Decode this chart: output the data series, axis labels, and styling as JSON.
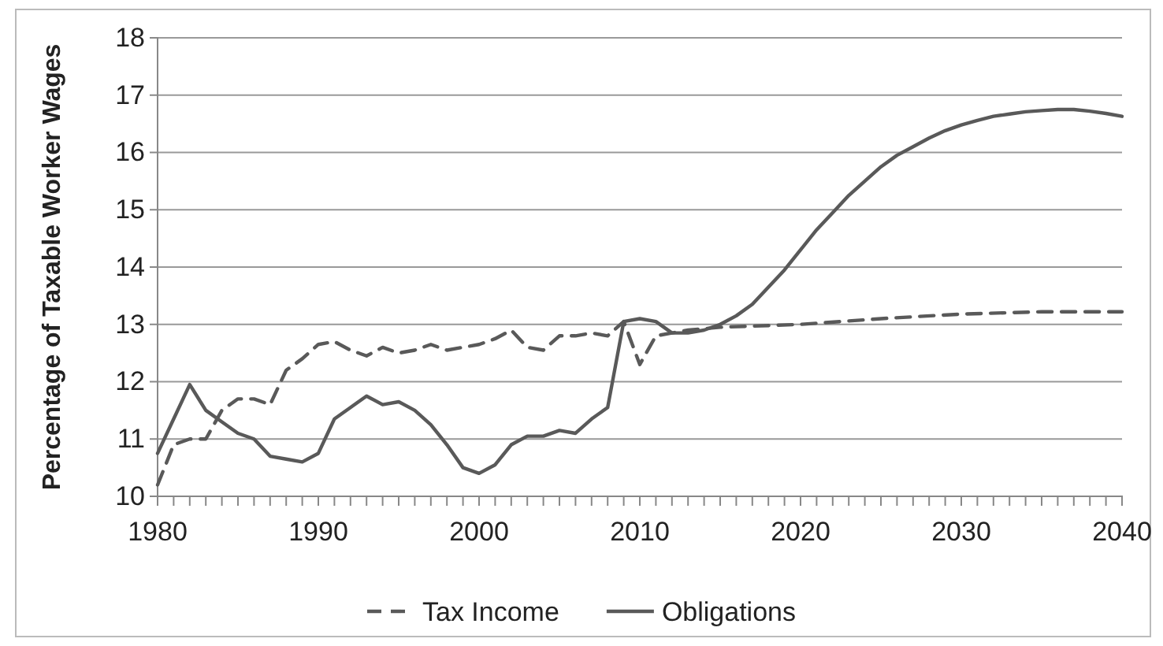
{
  "chart_data": {
    "type": "line",
    "ylabel": "Percentage of Taxable Worker Wages",
    "ylim": [
      10,
      18
    ],
    "yticks": [
      10,
      11,
      12,
      13,
      14,
      15,
      16,
      17,
      18
    ],
    "xlim": [
      1980,
      2040
    ],
    "xticks": [
      1980,
      {
        "value": 1981,
        "label": null
      },
      {
        "value": 1982,
        "label": null
      },
      {
        "value": 1983,
        "label": null
      },
      {
        "value": 1984,
        "label": null
      },
      {
        "value": 1985,
        "label": null
      },
      {
        "value": 1986,
        "label": null
      },
      {
        "value": 1987,
        "label": null
      },
      {
        "value": 1988,
        "label": null
      },
      {
        "value": 1989,
        "label": null
      },
      1990,
      {
        "value": 1991,
        "label": null
      },
      {
        "value": 1992,
        "label": null
      },
      {
        "value": 1993,
        "label": null
      },
      {
        "value": 1994,
        "label": null
      },
      {
        "value": 1995,
        "label": null
      },
      {
        "value": 1996,
        "label": null
      },
      {
        "value": 1997,
        "label": null
      },
      {
        "value": 1998,
        "label": null
      },
      {
        "value": 1999,
        "label": null
      },
      2000,
      {
        "value": 2001,
        "label": null
      },
      {
        "value": 2002,
        "label": null
      },
      {
        "value": 2003,
        "label": null
      },
      {
        "value": 2004,
        "label": null
      },
      {
        "value": 2005,
        "label": null
      },
      {
        "value": 2006,
        "label": null
      },
      {
        "value": 2007,
        "label": null
      },
      {
        "value": 2008,
        "label": null
      },
      {
        "value": 2009,
        "label": null
      },
      2010,
      {
        "value": 2011,
        "label": null
      },
      {
        "value": 2012,
        "label": null
      },
      {
        "value": 2013,
        "label": null
      },
      {
        "value": 2014,
        "label": null
      },
      {
        "value": 2015,
        "label": null
      },
      {
        "value": 2016,
        "label": null
      },
      {
        "value": 2017,
        "label": null
      },
      {
        "value": 2018,
        "label": null
      },
      {
        "value": 2019,
        "label": null
      },
      2020,
      {
        "value": 2021,
        "label": null
      },
      {
        "value": 2022,
        "label": null
      },
      {
        "value": 2023,
        "label": null
      },
      {
        "value": 2024,
        "label": null
      },
      {
        "value": 2025,
        "label": null
      },
      {
        "value": 2026,
        "label": null
      },
      {
        "value": 2027,
        "label": null
      },
      {
        "value": 2028,
        "label": null
      },
      {
        "value": 2029,
        "label": null
      },
      2030,
      {
        "value": 2031,
        "label": null
      },
      {
        "value": 2032,
        "label": null
      },
      {
        "value": 2033,
        "label": null
      },
      {
        "value": 2034,
        "label": null
      },
      {
        "value": 2035,
        "label": null
      },
      {
        "value": 2036,
        "label": null
      },
      {
        "value": 2037,
        "label": null
      },
      {
        "value": 2038,
        "label": null
      },
      {
        "value": 2039,
        "label": null
      },
      2040
    ],
    "grid": "y",
    "legend": "bottom",
    "series": [
      {
        "name": "Tax Income",
        "color": "#595959",
        "line_style": "dashed",
        "x": [
          1980,
          1981,
          1982,
          1983,
          1984,
          1985,
          1986,
          1987,
          1988,
          1989,
          1990,
          1991,
          1992,
          1993,
          1994,
          1995,
          1996,
          1997,
          1998,
          1999,
          2000,
          2001,
          2002,
          2003,
          2004,
          2005,
          2006,
          2007,
          2008,
          2009,
          2010,
          2011,
          2012,
          2013,
          2015,
          2020,
          2025,
          2030,
          2035,
          2040
        ],
        "values": [
          10.2,
          10.9,
          11.0,
          11.0,
          11.5,
          11.7,
          11.7,
          11.6,
          12.2,
          12.4,
          12.65,
          12.7,
          12.55,
          12.45,
          12.6,
          12.5,
          12.55,
          12.65,
          12.55,
          12.6,
          12.65,
          12.75,
          12.9,
          12.6,
          12.55,
          12.8,
          12.8,
          12.85,
          12.8,
          13.05,
          12.3,
          12.8,
          12.85,
          12.9,
          12.95,
          13.0,
          13.1,
          13.18,
          13.22,
          13.22
        ]
      },
      {
        "name": "Obligations",
        "color": "#595959",
        "line_style": "solid",
        "x": [
          1980,
          1981,
          1982,
          1983,
          1984,
          1985,
          1986,
          1987,
          1988,
          1989,
          1990,
          1991,
          1992,
          1993,
          1994,
          1995,
          1996,
          1997,
          1998,
          1999,
          2000,
          2001,
          2002,
          2003,
          2004,
          2005,
          2006,
          2007,
          2008,
          2009,
          2010,
          2011,
          2012,
          2013,
          2014,
          2015,
          2016,
          2017,
          2018,
          2019,
          2020,
          2021,
          2022,
          2023,
          2024,
          2025,
          2026,
          2027,
          2028,
          2029,
          2030,
          2031,
          2032,
          2033,
          2034,
          2035,
          2036,
          2037,
          2038,
          2039,
          2040
        ],
        "values": [
          10.75,
          11.35,
          11.95,
          11.5,
          11.3,
          11.1,
          11.0,
          10.7,
          10.65,
          10.6,
          10.75,
          11.35,
          11.55,
          11.75,
          11.6,
          11.65,
          11.5,
          11.25,
          10.9,
          10.5,
          10.4,
          10.55,
          10.9,
          11.05,
          11.05,
          11.15,
          11.1,
          11.35,
          11.55,
          13.05,
          13.1,
          13.05,
          12.85,
          12.85,
          12.9,
          13.0,
          13.15,
          13.35,
          13.65,
          13.95,
          14.3,
          14.65,
          14.95,
          15.25,
          15.5,
          15.75,
          15.95,
          16.1,
          16.25,
          16.38,
          16.48,
          16.56,
          16.63,
          16.67,
          16.71,
          16.73,
          16.75,
          16.75,
          16.72,
          16.68,
          16.63
        ]
      }
    ]
  }
}
